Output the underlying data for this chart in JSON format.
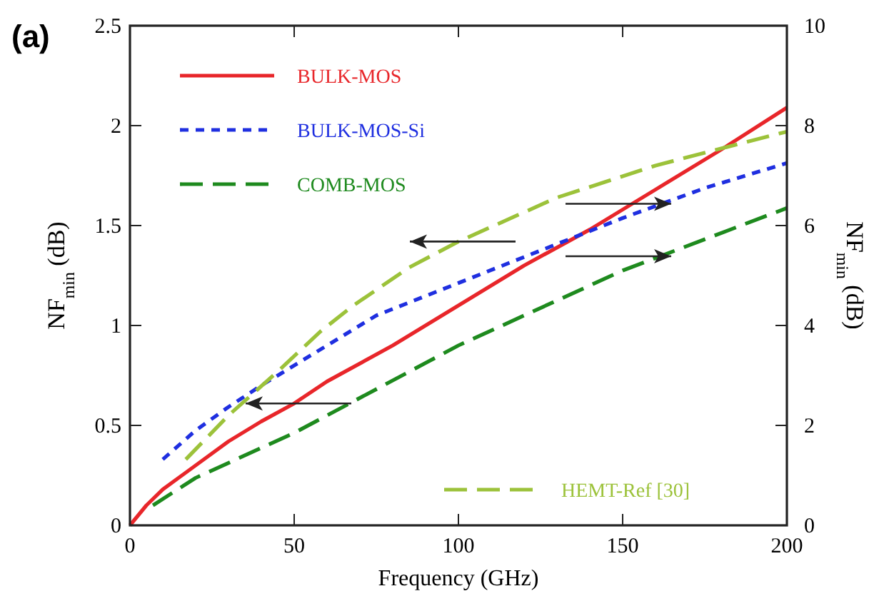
{
  "chart_data": {
    "type": "line",
    "title": "(a)",
    "xlabel": "Frequency (GHz)",
    "ylabel": "NF$_{min}$ (dB)",
    "y2label": "NF$_{min}$ (dB)",
    "xlim": [
      0,
      200
    ],
    "xticks": [
      0,
      50,
      100,
      150,
      200
    ],
    "ylim": [
      0,
      2.5
    ],
    "yticks": [
      0,
      0.5,
      1,
      1.5,
      2,
      2.5
    ],
    "y2lim": [
      0,
      10
    ],
    "y2ticks": [
      0,
      2,
      4,
      6,
      8,
      10
    ],
    "legend": "left",
    "grid": false,
    "series": [
      {
        "name": "BULK-MOS",
        "color": "#e8262a",
        "line_style": "solid",
        "axis": "y",
        "x": [
          0,
          5,
          10,
          20,
          30,
          40,
          50,
          60,
          80,
          100,
          120,
          140,
          160,
          180,
          200
        ],
        "values": [
          0,
          0.1,
          0.18,
          0.3,
          0.42,
          0.52,
          0.61,
          0.72,
          0.9,
          1.1,
          1.3,
          1.48,
          1.68,
          1.88,
          2.09
        ]
      },
      {
        "name": "BULK-MOS-Si",
        "color": "#1f2fe0",
        "line_style": "dotted",
        "axis": "y2",
        "x": [
          10,
          20,
          30,
          40,
          50,
          75,
          100,
          125,
          150,
          175,
          200
        ],
        "values": [
          1.32,
          1.9,
          2.37,
          2.8,
          3.2,
          4.2,
          4.85,
          5.5,
          6.15,
          6.75,
          7.25
        ]
      },
      {
        "name": "COMB-MOS",
        "color": "#1e8a1e",
        "line_style": "dashed",
        "axis": "y2",
        "x": [
          7,
          20,
          50,
          100,
          150,
          200
        ],
        "values": [
          0.4,
          0.95,
          1.85,
          3.6,
          5.1,
          6.35
        ]
      },
      {
        "name": "HEMT-Ref [30]",
        "color": "#9cc23a",
        "line_style": "dashed",
        "axis": "y",
        "x": [
          17,
          30,
          45,
          58,
          68,
          85,
          100,
          130,
          160,
          181,
          200
        ],
        "values": [
          0.33,
          0.55,
          0.77,
          0.97,
          1.1,
          1.29,
          1.42,
          1.64,
          1.8,
          1.89,
          1.97
        ]
      }
    ]
  }
}
